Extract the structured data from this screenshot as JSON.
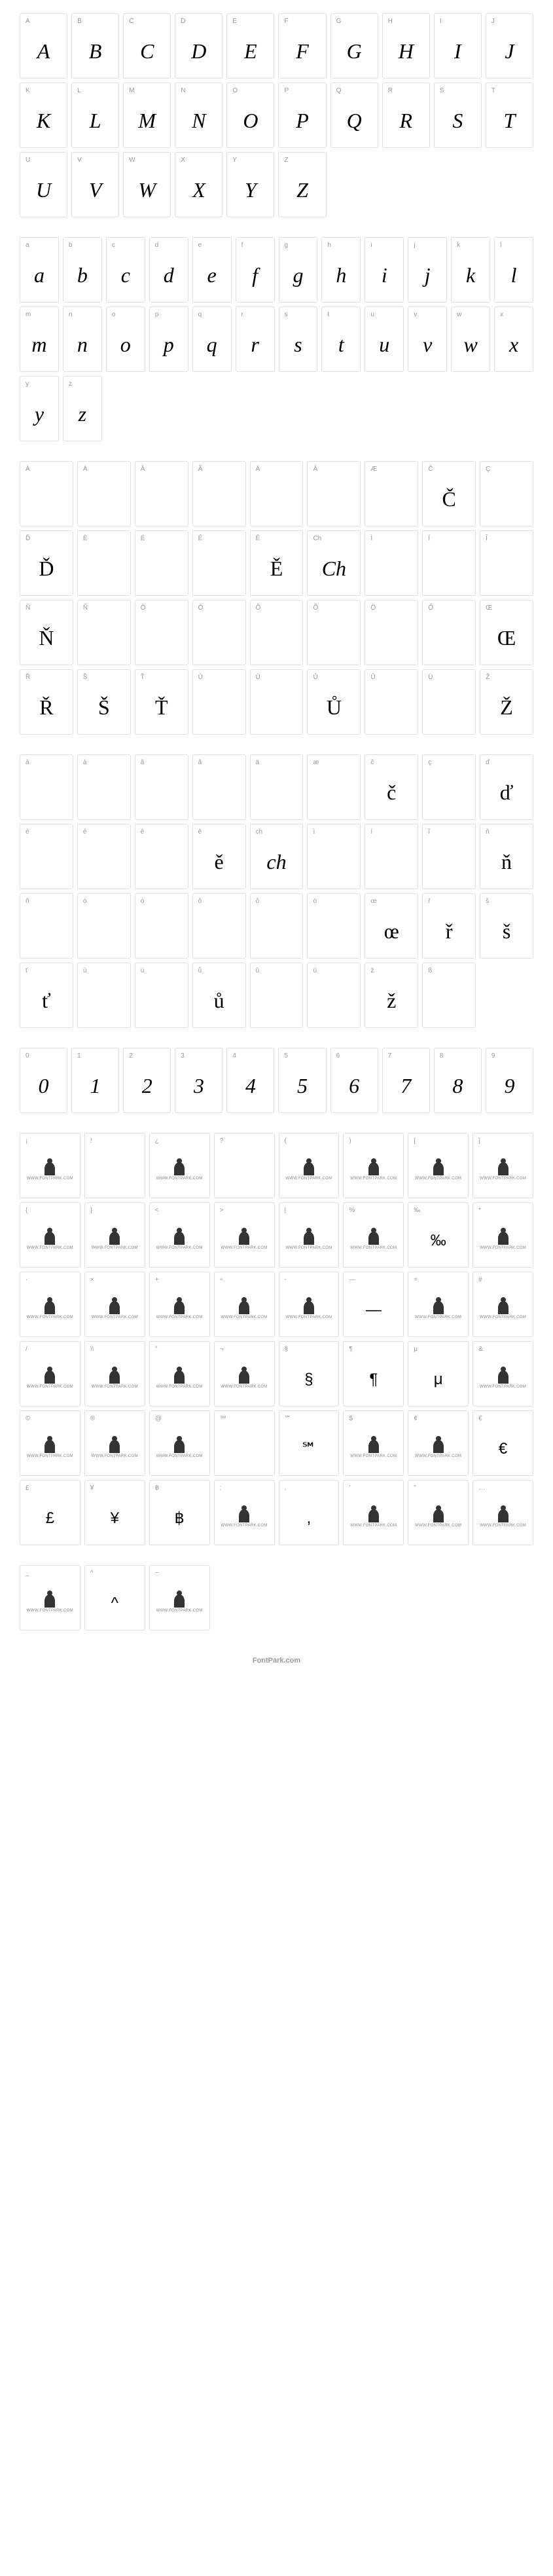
{
  "footer_text": "FontPark.com",
  "sections": [
    {
      "id": "uppercase",
      "cols": 10,
      "cells": [
        {
          "label": "A",
          "glyph": "A",
          "style": "script"
        },
        {
          "label": "B",
          "glyph": "B",
          "style": "script"
        },
        {
          "label": "C",
          "glyph": "C",
          "style": "script"
        },
        {
          "label": "D",
          "glyph": "D",
          "style": "script"
        },
        {
          "label": "E",
          "glyph": "E",
          "style": "script"
        },
        {
          "label": "F",
          "glyph": "F",
          "style": "script"
        },
        {
          "label": "G",
          "glyph": "G",
          "style": "script"
        },
        {
          "label": "H",
          "glyph": "H",
          "style": "script"
        },
        {
          "label": "I",
          "glyph": "I",
          "style": "script"
        },
        {
          "label": "J",
          "glyph": "J",
          "style": "script"
        },
        {
          "label": "K",
          "glyph": "K",
          "style": "script"
        },
        {
          "label": "L",
          "glyph": "L",
          "style": "script"
        },
        {
          "label": "M",
          "glyph": "M",
          "style": "script"
        },
        {
          "label": "N",
          "glyph": "N",
          "style": "script"
        },
        {
          "label": "O",
          "glyph": "O",
          "style": "script"
        },
        {
          "label": "P",
          "glyph": "P",
          "style": "script"
        },
        {
          "label": "Q",
          "glyph": "Q",
          "style": "script"
        },
        {
          "label": "R",
          "glyph": "R",
          "style": "script"
        },
        {
          "label": "S",
          "glyph": "S",
          "style": "script"
        },
        {
          "label": "T",
          "glyph": "T",
          "style": "script"
        },
        {
          "label": "U",
          "glyph": "U",
          "style": "script"
        },
        {
          "label": "V",
          "glyph": "V",
          "style": "script"
        },
        {
          "label": "W",
          "glyph": "W",
          "style": "script"
        },
        {
          "label": "X",
          "glyph": "X",
          "style": "script"
        },
        {
          "label": "Y",
          "glyph": "Y",
          "style": "script"
        },
        {
          "label": "Z",
          "glyph": "Z",
          "style": "script"
        },
        {
          "empty": true
        },
        {
          "empty": true
        },
        {
          "empty": true
        },
        {
          "empty": true
        }
      ]
    },
    {
      "id": "lowercase",
      "cols": 10,
      "cells": [
        {
          "label": "a",
          "glyph": "a",
          "style": "script"
        },
        {
          "label": "b",
          "glyph": "b",
          "style": "script"
        },
        {
          "label": "c",
          "glyph": "c",
          "style": "script"
        },
        {
          "label": "d",
          "glyph": "d",
          "style": "script"
        },
        {
          "label": "e",
          "glyph": "e",
          "style": "script"
        },
        {
          "label": "f",
          "glyph": "f",
          "style": "script"
        },
        {
          "label": "g",
          "glyph": "g",
          "style": "script"
        },
        {
          "label": "h",
          "glyph": "h",
          "style": "script"
        },
        {
          "label": "i",
          "glyph": "i",
          "style": "script"
        },
        {
          "label": "j",
          "glyph": "j",
          "style": "script"
        },
        {
          "label": "k",
          "glyph": "k",
          "style": "script"
        },
        {
          "label": "l",
          "glyph": "l",
          "style": "script"
        },
        {
          "label": "m",
          "glyph": "m",
          "style": "script"
        },
        {
          "label": "n",
          "glyph": "n",
          "style": "script"
        },
        {
          "label": "o",
          "glyph": "o",
          "style": "script"
        },
        {
          "label": "p",
          "glyph": "p",
          "style": "script"
        },
        {
          "label": "q",
          "glyph": "q",
          "style": "script"
        },
        {
          "label": "r",
          "glyph": "r",
          "style": "script"
        },
        {
          "label": "s",
          "glyph": "s",
          "style": "script"
        },
        {
          "label": "t",
          "glyph": "t",
          "style": "script"
        },
        {
          "label": "u",
          "glyph": "u",
          "style": "script"
        },
        {
          "label": "v",
          "glyph": "v",
          "style": "script"
        },
        {
          "label": "w",
          "glyph": "w",
          "style": "script"
        },
        {
          "label": "x",
          "glyph": "x",
          "style": "script"
        },
        {
          "label": "y",
          "glyph": "y",
          "style": "script"
        },
        {
          "label": "z",
          "glyph": "z",
          "style": "script"
        },
        {
          "empty": true
        },
        {
          "empty": true
        },
        {
          "empty": true
        },
        {
          "empty": true
        },
        {
          "empty": true
        },
        {
          "empty": true
        },
        {
          "empty": true
        },
        {
          "empty": true
        },
        {
          "empty": true
        },
        {
          "empty": true
        }
      ],
      "cols_override": 12
    },
    {
      "id": "accented-upper",
      "cols": 9,
      "cells": [
        {
          "label": "À",
          "glyph": "",
          "style": "script"
        },
        {
          "label": "Á",
          "glyph": "",
          "style": "script"
        },
        {
          "label": "Â",
          "glyph": "",
          "style": "script"
        },
        {
          "label": "Ã",
          "glyph": "",
          "style": "script"
        },
        {
          "label": "Ä",
          "glyph": "",
          "style": "script"
        },
        {
          "label": "Ā",
          "glyph": "",
          "style": "script"
        },
        {
          "label": "Æ",
          "glyph": "",
          "style": "script"
        },
        {
          "label": "Č",
          "glyph": "Č",
          "style": "serif"
        },
        {
          "label": "Ç",
          "glyph": "",
          "style": "script"
        },
        {
          "label": "Ď",
          "glyph": "Ď",
          "style": "serif"
        },
        {
          "label": "È",
          "glyph": "",
          "style": "script"
        },
        {
          "label": "É",
          "glyph": "",
          "style": "script"
        },
        {
          "label": "Ê",
          "glyph": "",
          "style": "script"
        },
        {
          "label": "Ě",
          "glyph": "Ě",
          "style": "serif"
        },
        {
          "label": "Ch",
          "glyph": "Ch",
          "style": "script"
        },
        {
          "label": "Ì",
          "glyph": "",
          "style": "script"
        },
        {
          "label": "Í",
          "glyph": "",
          "style": "script"
        },
        {
          "label": "Î",
          "glyph": "",
          "style": "script"
        },
        {
          "label": "Ň",
          "glyph": "Ň",
          "style": "serif"
        },
        {
          "label": "Ñ",
          "glyph": "",
          "style": "script"
        },
        {
          "label": "Ò",
          "glyph": "",
          "style": "script"
        },
        {
          "label": "Ó",
          "glyph": "",
          "style": "script"
        },
        {
          "label": "Ô",
          "glyph": "",
          "style": "script"
        },
        {
          "label": "Õ",
          "glyph": "",
          "style": "script"
        },
        {
          "label": "Ö",
          "glyph": "",
          "style": "script"
        },
        {
          "label": "Ő",
          "glyph": "",
          "style": "script"
        },
        {
          "label": "Œ",
          "glyph": "Œ",
          "style": "serif"
        },
        {
          "label": "Ř",
          "glyph": "Ř",
          "style": "serif"
        },
        {
          "label": "Š",
          "glyph": "Š",
          "style": "serif"
        },
        {
          "label": "Ť",
          "glyph": "Ť",
          "style": "serif"
        },
        {
          "label": "Ù",
          "glyph": "",
          "style": "script"
        },
        {
          "label": "Ú",
          "glyph": "",
          "style": "script"
        },
        {
          "label": "Ů",
          "glyph": "Ů",
          "style": "serif"
        },
        {
          "label": "Û",
          "glyph": "",
          "style": "script"
        },
        {
          "label": "Ü",
          "glyph": "",
          "style": "script"
        },
        {
          "label": "Ž",
          "glyph": "Ž",
          "style": "serif"
        }
      ]
    },
    {
      "id": "accented-lower",
      "cols": 9,
      "cells": [
        {
          "label": "à",
          "glyph": "",
          "style": "script"
        },
        {
          "label": "á",
          "glyph": "",
          "style": "script"
        },
        {
          "label": "â",
          "glyph": "",
          "style": "script"
        },
        {
          "label": "ã",
          "glyph": "",
          "style": "script"
        },
        {
          "label": "ä",
          "glyph": "",
          "style": "script"
        },
        {
          "label": "æ",
          "glyph": "",
          "style": "script"
        },
        {
          "label": "č",
          "glyph": "č",
          "style": "serif"
        },
        {
          "label": "ç",
          "glyph": "",
          "style": "script"
        },
        {
          "label": "ď",
          "glyph": "ď",
          "style": "serif"
        },
        {
          "label": "è",
          "glyph": "",
          "style": "script"
        },
        {
          "label": "é",
          "glyph": "",
          "style": "script"
        },
        {
          "label": "ê",
          "glyph": "",
          "style": "script"
        },
        {
          "label": "ě",
          "glyph": "ě",
          "style": "serif"
        },
        {
          "label": "ch",
          "glyph": "ch",
          "style": "script"
        },
        {
          "label": "ì",
          "glyph": "",
          "style": "script"
        },
        {
          "label": "í",
          "glyph": "",
          "style": "script"
        },
        {
          "label": "î",
          "glyph": "",
          "style": "script"
        },
        {
          "label": "ň",
          "glyph": "ň",
          "style": "serif"
        },
        {
          "label": "ñ",
          "glyph": "",
          "style": "script"
        },
        {
          "label": "ò",
          "glyph": "",
          "style": "script"
        },
        {
          "label": "ó",
          "glyph": "",
          "style": "script"
        },
        {
          "label": "ô",
          "glyph": "",
          "style": "script"
        },
        {
          "label": "õ",
          "glyph": "",
          "style": "script"
        },
        {
          "label": "ö",
          "glyph": "",
          "style": "script"
        },
        {
          "label": "œ",
          "glyph": "œ",
          "style": "serif"
        },
        {
          "label": "ř",
          "glyph": "ř",
          "style": "serif"
        },
        {
          "label": "š",
          "glyph": "š",
          "style": "serif"
        },
        {
          "label": "ť",
          "glyph": "ť",
          "style": "serif"
        },
        {
          "label": "ù",
          "glyph": "",
          "style": "script"
        },
        {
          "label": "ú",
          "glyph": "",
          "style": "script"
        },
        {
          "label": "ů",
          "glyph": "ů",
          "style": "serif"
        },
        {
          "label": "û",
          "glyph": "",
          "style": "script"
        },
        {
          "label": "ü",
          "glyph": "",
          "style": "script"
        },
        {
          "label": "ž",
          "glyph": "ž",
          "style": "serif"
        },
        {
          "label": "ß",
          "glyph": "",
          "style": "script"
        },
        {
          "empty": true
        }
      ]
    },
    {
      "id": "digits",
      "cols": 10,
      "cells": [
        {
          "label": "0",
          "glyph": "0",
          "style": "script"
        },
        {
          "label": "1",
          "glyph": "1",
          "style": "script"
        },
        {
          "label": "2",
          "glyph": "2",
          "style": "script"
        },
        {
          "label": "3",
          "glyph": "3",
          "style": "script"
        },
        {
          "label": "4",
          "glyph": "4",
          "style": "script"
        },
        {
          "label": "5",
          "glyph": "5",
          "style": "script"
        },
        {
          "label": "6",
          "glyph": "6",
          "style": "script"
        },
        {
          "label": "7",
          "glyph": "7",
          "style": "script"
        },
        {
          "label": "8",
          "glyph": "8",
          "style": "script"
        },
        {
          "label": "9",
          "glyph": "9",
          "style": "script"
        }
      ]
    },
    {
      "id": "symbols",
      "cols": 8,
      "cells": [
        {
          "label": "¡",
          "icon": true
        },
        {
          "label": "!",
          "glyph": "",
          "style": "script"
        },
        {
          "label": "¿",
          "icon": true
        },
        {
          "label": "?",
          "glyph": "",
          "style": "script"
        },
        {
          "label": "(",
          "icon": true
        },
        {
          "label": ")",
          "icon": true
        },
        {
          "label": "[",
          "icon": true
        },
        {
          "label": "]",
          "icon": true
        },
        {
          "label": "{",
          "icon": true
        },
        {
          "label": "}",
          "icon": true
        },
        {
          "label": "<",
          "icon": true
        },
        {
          "label": ">",
          "icon": true
        },
        {
          "label": "|",
          "icon": true
        },
        {
          "label": "%",
          "icon": true
        },
        {
          "label": "‰",
          "glyph": "‰",
          "style": "sans"
        },
        {
          "label": "*",
          "icon": true
        },
        {
          "label": "·",
          "icon": true
        },
        {
          "label": "×",
          "icon": true
        },
        {
          "label": "+",
          "icon": true
        },
        {
          "label": "÷",
          "icon": true
        },
        {
          "label": "-",
          "icon": true
        },
        {
          "label": "—",
          "glyph": "—",
          "style": "sans"
        },
        {
          "label": "=",
          "icon": true
        },
        {
          "label": "#",
          "icon": true
        },
        {
          "label": "/",
          "icon": true
        },
        {
          "label": "\\\\",
          "icon": true
        },
        {
          "label": "°",
          "icon": true
        },
        {
          "label": "¬",
          "icon": true
        },
        {
          "label": "§",
          "glyph": "§",
          "style": "sans"
        },
        {
          "label": "¶",
          "glyph": "¶",
          "style": "sans"
        },
        {
          "label": "μ",
          "glyph": "μ",
          "style": "sans"
        },
        {
          "label": "&",
          "icon": true
        },
        {
          "label": "©",
          "icon": true
        },
        {
          "label": "®",
          "icon": true
        },
        {
          "label": "@",
          "icon": true
        },
        {
          "label": "™",
          "glyph": "",
          "style": "script"
        },
        {
          "label": "℠",
          "glyph": "℠",
          "style": "sans"
        },
        {
          "label": "$",
          "icon": true
        },
        {
          "label": "¢",
          "icon": true
        },
        {
          "label": "€",
          "glyph": "€",
          "style": "sans"
        },
        {
          "label": "£",
          "glyph": "£",
          "style": "sans"
        },
        {
          "label": "¥",
          "glyph": "¥",
          "style": "sans"
        },
        {
          "label": "฿",
          "glyph": "฿",
          "style": "sans"
        },
        {
          "label": ";",
          "icon": true
        },
        {
          "label": ",",
          "glyph": ",",
          "style": "sans"
        },
        {
          "label": "'",
          "icon": true
        },
        {
          "label": "\"",
          "icon": true
        },
        {
          "label": "…",
          "icon": true
        }
      ]
    },
    {
      "id": "last",
      "cols": 8,
      "cells": [
        {
          "label": "_",
          "icon": true
        },
        {
          "label": "^",
          "glyph": "^",
          "style": "sans"
        },
        {
          "label": "~",
          "icon": true
        },
        {
          "empty": true
        },
        {
          "empty": true
        },
        {
          "empty": true
        },
        {
          "empty": true
        },
        {
          "empty": true
        }
      ]
    }
  ],
  "icon_text": "WWW.FONTPARK.COM"
}
